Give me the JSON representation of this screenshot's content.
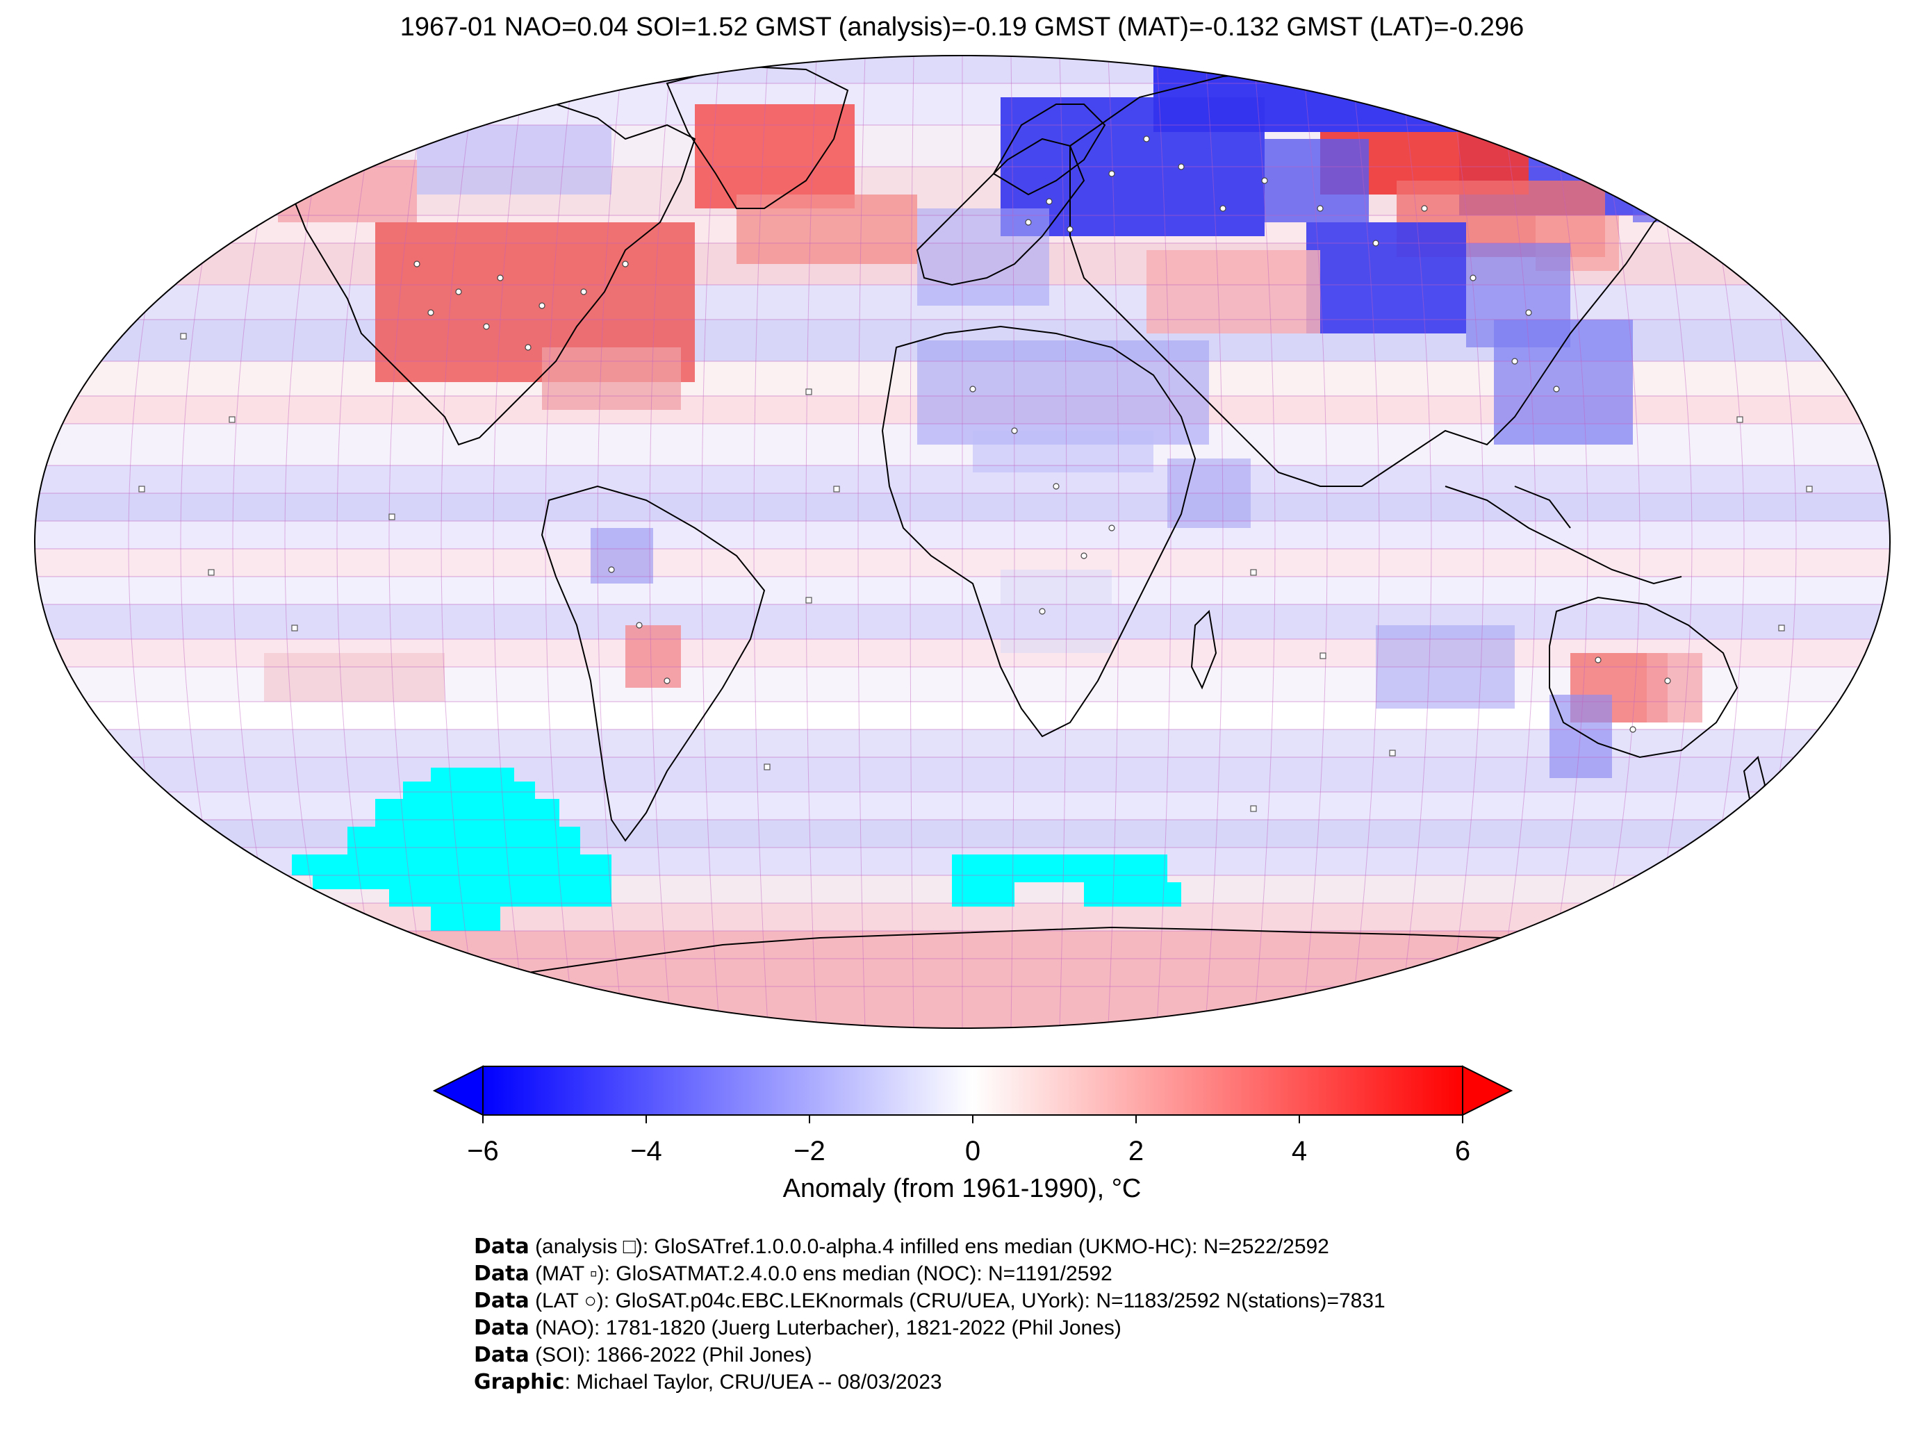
{
  "title": "1967-01 NAO=0.04 SOI=1.52 GMST (analysis)=-0.19 GMST (MAT)=-0.132 GMST (LAT)=-0.296",
  "colorbar": {
    "label": "Anomaly (from 1961-1990), °C",
    "ticks": [
      "−6",
      "−4",
      "−2",
      "0",
      "2",
      "4",
      "6"
    ],
    "range": [
      -6,
      6
    ],
    "colors": {
      "min": "#0000ff",
      "mid": "#ffffff",
      "max": "#ff0000"
    }
  },
  "map": {
    "projection": "Robinson",
    "land_outline_color": "#000000",
    "grid_color": "#c060c0",
    "missing_color": "#00ffff",
    "anomaly_regions": [
      {
        "region": "eastern Siberia",
        "sign": "cold",
        "color": "#2a2af0"
      },
      {
        "region": "western Russia / Scandinavia",
        "sign": "cold",
        "color": "#3434ee"
      },
      {
        "region": "central Asia",
        "sign": "cold",
        "color": "#3c3cee"
      },
      {
        "region": "northern Siberia belt",
        "sign": "warm",
        "color": "#f04848"
      },
      {
        "region": "Greenland",
        "sign": "warm",
        "color": "#f45a5a"
      },
      {
        "region": "North America",
        "sign": "warm",
        "color": "#ee6060"
      },
      {
        "region": "Australia",
        "sign": "warm",
        "color": "#f27a7a"
      },
      {
        "region": "Antarctica",
        "sign": "warm",
        "color": "#f6a0a0"
      }
    ]
  },
  "credits": [
    {
      "label": "Data",
      "text": " (analysis □): GloSATref.1.0.0.0-alpha.4 infilled ens median (UKMO-HC): N=2522/2592"
    },
    {
      "label": "Data",
      "text": " (MAT ▫): GloSATMAT.2.4.0.0 ens median (NOC): N=1191/2592"
    },
    {
      "label": "Data",
      "text": " (LAT ○): GloSAT.p04c.EBC.LEKnormals (CRU/UEA, UYork): N=1183/2592 N(stations)=7831"
    },
    {
      "label": "Data",
      "text": " (NAO): 1781-1820 (Juerg Luterbacher), 1821-2022 (Phil Jones)"
    },
    {
      "label": "Data",
      "text": " (SOI): 1866-2022 (Phil Jones)"
    },
    {
      "label": "Graphic",
      "text": ": Michael Taylor, CRU/UEA -- 08/03/2023"
    }
  ]
}
